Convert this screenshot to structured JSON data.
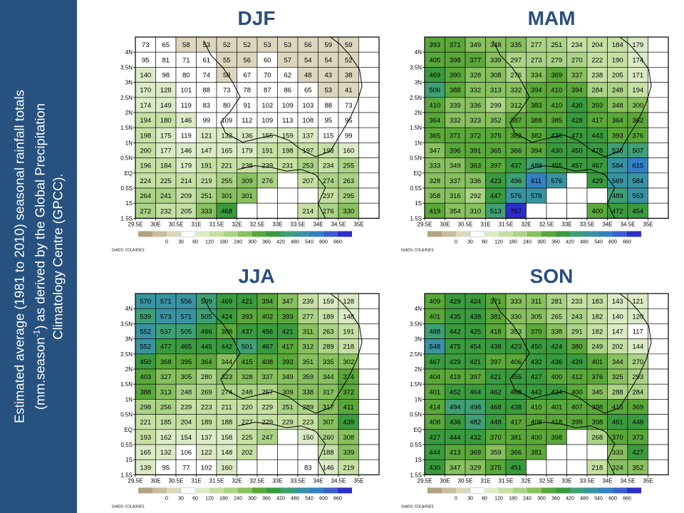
{
  "sidebar": {
    "line1": "Estimated average (1981 to 2010) seasonal rainfall totals",
    "line2_pre": "(mm.season",
    "line2_sup": "-1",
    "line2_post": ") as derived by the Global Precipitation",
    "line3": "Climatology Centre (GPCC)."
  },
  "grads_label": "GrADS: COLA/IGES",
  "colors": {
    "sidebar": "#27517f",
    "title": "#2a4f80",
    "scale": [
      "#b1a382",
      "#c8bd9c",
      "#ddd6be",
      "#ffffff",
      "#dcebc6",
      "#c6e0a4",
      "#abd387",
      "#88c060",
      "#5aa73a",
      "#3a9a3e",
      "#3f9f75",
      "#3a93a2",
      "#3480c5",
      "#3b5fd0",
      "#2e2ec8"
    ]
  },
  "chart_data": [
    {
      "type": "heatmap",
      "title": "DJF",
      "x_ticks": [
        "29.5E",
        "30E",
        "30.5E",
        "31E",
        "31.5E",
        "32E",
        "32.5E",
        "33E",
        "33.5E",
        "34E",
        "34.5E",
        "35E"
      ],
      "y_ticks": [
        "4N",
        "3.5N",
        "3N",
        "2.5N",
        "2N",
        "1.5N",
        "1N",
        "0.5N",
        "EQ",
        "0.5S",
        "1S",
        "1.5S"
      ],
      "legend_ticks": [
        "0",
        "30",
        "60",
        "120",
        "180",
        "240",
        "300",
        "360",
        "420",
        "480",
        "540",
        "600",
        "660"
      ],
      "grid": [
        [
          73,
          65,
          58,
          53,
          52,
          52,
          53,
          53,
          56,
          59,
          59,
          null
        ],
        [
          95,
          81,
          71,
          61,
          55,
          56,
          60,
          57,
          54,
          54,
          52,
          null
        ],
        [
          140,
          98,
          80,
          74,
          58,
          67,
          70,
          62,
          48,
          43,
          38,
          null
        ],
        [
          170,
          128,
          101,
          88,
          73,
          78,
          87,
          86,
          65,
          53,
          41,
          null
        ],
        [
          174,
          149,
          119,
          83,
          80,
          91,
          102,
          109,
          103,
          88,
          73,
          null
        ],
        [
          194,
          180,
          146,
          99,
          109,
          112,
          109,
          113,
          108,
          95,
          95,
          null
        ],
        [
          198,
          175,
          119,
          121,
          132,
          136,
          155,
          159,
          137,
          115,
          99,
          null
        ],
        [
          200,
          177,
          146,
          147,
          165,
          179,
          191,
          198,
          197,
          193,
          160,
          null
        ],
        [
          196,
          184,
          179,
          191,
          221,
          238,
          239,
          231,
          253,
          234,
          255,
          null
        ],
        [
          224,
          225,
          214,
          219,
          255,
          309,
          276,
          null,
          207,
          274,
          263,
          null
        ],
        [
          264,
          241,
          209,
          251,
          301,
          301,
          null,
          null,
          null,
          237,
          295,
          null
        ],
        [
          272,
          232,
          205,
          333,
          468,
          null,
          null,
          null,
          214,
          276,
          330,
          null
        ]
      ]
    },
    {
      "type": "heatmap",
      "title": "MAM",
      "x_ticks": [
        "29.5E",
        "30E",
        "30.5E",
        "31E",
        "31.5E",
        "32E",
        "32.5E",
        "33E",
        "33.5E",
        "34E",
        "34.5E",
        "35E"
      ],
      "y_ticks": [
        "4N",
        "3.5N",
        "3N",
        "2.5N",
        "2N",
        "1.5N",
        "1N",
        "0.5N",
        "EQ",
        "0.5S",
        "1S",
        "1.5S"
      ],
      "legend_ticks": [
        "0",
        "30",
        "60",
        "120",
        "180",
        "240",
        "300",
        "360",
        "420",
        "480",
        "540",
        "600",
        "660"
      ],
      "grid": [
        [
          393,
          371,
          349,
          348,
          335,
          277,
          251,
          234,
          204,
          184,
          179,
          null
        ],
        [
          405,
          398,
          377,
          339,
          297,
          273,
          279,
          270,
          222,
          190,
          174,
          null
        ],
        [
          469,
          390,
          328,
          308,
          276,
          334,
          369,
          337,
          238,
          205,
          171,
          null
        ],
        [
          506,
          388,
          332,
          313,
          332,
          394,
          410,
          394,
          284,
          248,
          194,
          null
        ],
        [
          410,
          339,
          336,
          299,
          312,
          383,
          410,
          430,
          393,
          348,
          300,
          null
        ],
        [
          364,
          332,
          323,
          352,
          387,
          388,
          385,
          428,
          417,
          364,
          362,
          null
        ],
        [
          365,
          371,
          372,
          375,
          382,
          382,
          438,
          473,
          443,
          393,
          376,
          null
        ],
        [
          347,
          396,
          391,
          365,
          366,
          394,
          430,
          450,
          478,
          528,
          507,
          null
        ],
        [
          333,
          349,
          363,
          397,
          437,
          489,
          455,
          457,
          467,
          584,
          615,
          null
        ],
        [
          328,
          337,
          336,
          423,
          496,
          611,
          576,
          null,
          429,
          569,
          584,
          null
        ],
        [
          358,
          316,
          292,
          447,
          576,
          578,
          null,
          null,
          null,
          489,
          553,
          null
        ],
        [
          419,
          354,
          310,
          513,
          767,
          null,
          null,
          null,
          400,
          472,
          454,
          null
        ]
      ]
    },
    {
      "type": "heatmap",
      "title": "JJA",
      "x_ticks": [
        "29.5E",
        "30E",
        "30.5E",
        "31E",
        "31.5E",
        "32E",
        "32.5E",
        "33E",
        "33.5E",
        "34E",
        "34.5E",
        "35E"
      ],
      "y_ticks": [
        "4N",
        "3.5N",
        "3N",
        "2.5N",
        "2N",
        "1.5N",
        "1N",
        "0.5N",
        "EQ",
        "0.5S",
        "1S",
        "1.5S"
      ],
      "legend_ticks": [
        "0",
        "30",
        "60",
        "120",
        "180",
        "240",
        "300",
        "360",
        "420",
        "480",
        "540",
        "600",
        "660"
      ],
      "grid": [
        [
          570,
          571,
          556,
          509,
          469,
          421,
          394,
          347,
          239,
          159,
          128,
          null
        ],
        [
          539,
          573,
          571,
          505,
          424,
          393,
          402,
          393,
          277,
          189,
          148,
          null
        ],
        [
          552,
          537,
          505,
          466,
          389,
          437,
          456,
          421,
          311,
          263,
          191,
          null
        ],
        [
          552,
          477,
          465,
          445,
          442,
          501,
          467,
          417,
          312,
          289,
          218,
          null
        ],
        [
          450,
          368,
          395,
          364,
          344,
          415,
          408,
          393,
          351,
          335,
          302,
          null
        ],
        [
          403,
          327,
          305,
          280,
          323,
          328,
          337,
          349,
          359,
          344,
          374,
          null
        ],
        [
          388,
          313,
          248,
          269,
          274,
          248,
          257,
          309,
          338,
          317,
          372,
          null
        ],
        [
          298,
          256,
          239,
          223,
          211,
          220,
          229,
          251,
          289,
          317,
          411,
          null
        ],
        [
          221,
          185,
          204,
          189,
          188,
          227,
          229,
          229,
          223,
          307,
          439,
          null
        ],
        [
          193,
          162,
          154,
          137,
          158,
          225,
          247,
          null,
          150,
          260,
          308,
          null
        ],
        [
          165,
          132,
          106,
          122,
          148,
          202,
          null,
          null,
          null,
          188,
          339,
          null
        ],
        [
          139,
          95,
          77,
          102,
          160,
          null,
          null,
          null,
          83,
          146,
          219,
          null
        ]
      ]
    },
    {
      "type": "heatmap",
      "title": "SON",
      "x_ticks": [
        "29.5E",
        "30E",
        "30.5E",
        "31E",
        "31.5E",
        "32E",
        "32.5E",
        "33E",
        "33.5E",
        "34E",
        "34.5E",
        "35E"
      ],
      "y_ticks": [
        "4N",
        "3.5N",
        "3N",
        "2.5N",
        "2N",
        "1.5N",
        "1N",
        "0.5N",
        "EQ",
        "0.5S",
        "1S",
        "1.5S"
      ],
      "legend_ticks": [
        "0",
        "30",
        "60",
        "120",
        "180",
        "240",
        "300",
        "360",
        "420",
        "480",
        "540",
        "600",
        "660"
      ],
      "grid": [
        [
          409,
          429,
          424,
          371,
          333,
          311,
          281,
          233,
          183,
          143,
          121,
          null
        ],
        [
          401,
          435,
          438,
          381,
          330,
          305,
          265,
          243,
          182,
          140,
          120,
          null
        ],
        [
          488,
          442,
          425,
          418,
          353,
          370,
          338,
          291,
          182,
          147,
          117,
          null
        ],
        [
          548,
          475,
          454,
          438,
          423,
          450,
          424,
          380,
          249,
          202,
          144,
          null
        ],
        [
          467,
          429,
          421,
          397,
          406,
          432,
          436,
          439,
          401,
          344,
          270,
          null
        ],
        [
          404,
          419,
          397,
          421,
          455,
          427,
          400,
          412,
          376,
          325,
          293,
          null
        ],
        [
          401,
          452,
          464,
          462,
          468,
          442,
          424,
          400,
          345,
          288,
          284,
          null
        ],
        [
          414,
          494,
          498,
          468,
          438,
          410,
          401,
          407,
          398,
          415,
          369,
          null
        ],
        [
          408,
          436,
          482,
          448,
          417,
          408,
          418,
          399,
          398,
          461,
          448,
          null
        ],
        [
          427,
          444,
          432,
          370,
          381,
          400,
          398,
          null,
          268,
          370,
          373,
          null
        ],
        [
          444,
          413,
          369,
          359,
          366,
          381,
          null,
          null,
          null,
          333,
          427,
          null
        ],
        [
          430,
          347,
          329,
          375,
          451,
          null,
          null,
          null,
          218,
          324,
          352,
          null
        ]
      ]
    }
  ]
}
